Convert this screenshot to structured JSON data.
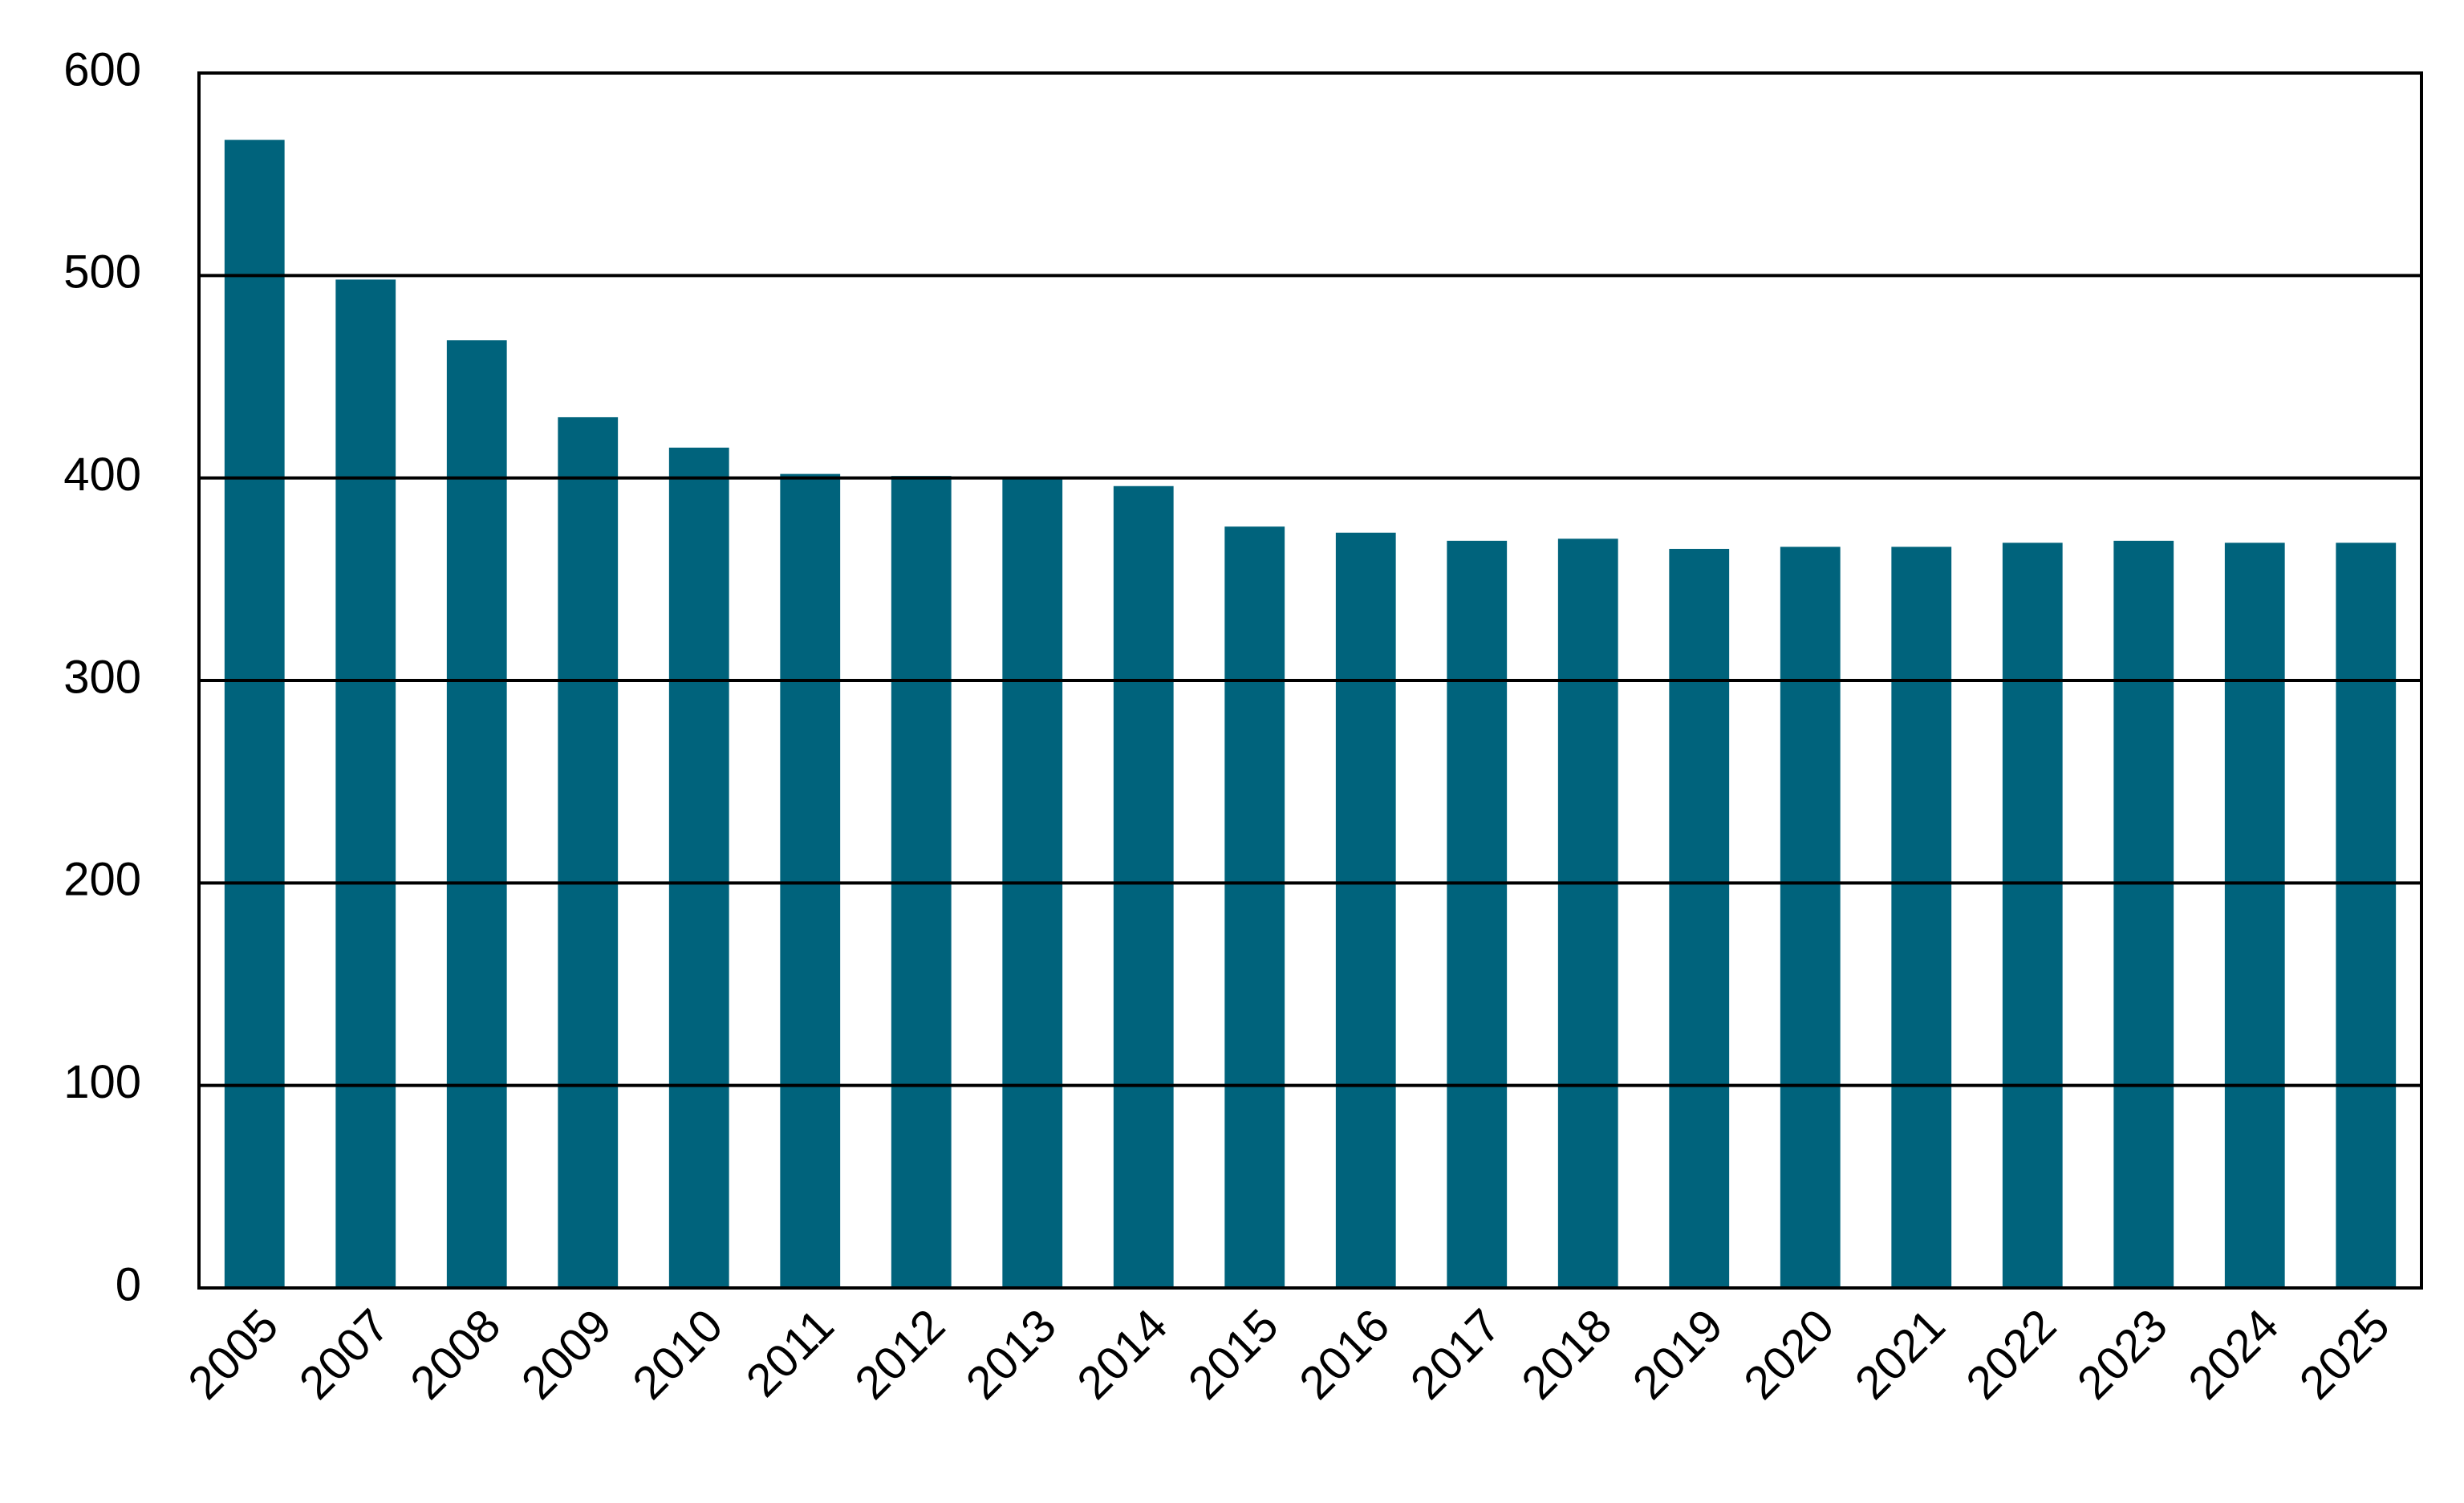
{
  "chart_data": {
    "type": "bar",
    "categories": [
      "2005",
      "2007",
      "2008",
      "2009",
      "2010",
      "2011",
      "2012",
      "2013",
      "2014",
      "2015",
      "2016",
      "2017",
      "2018",
      "2019",
      "2020",
      "2021",
      "2022",
      "2023",
      "2024",
      "2025"
    ],
    "values": [
      567,
      498,
      468,
      430,
      415,
      402,
      401,
      400,
      396,
      376,
      373,
      369,
      370,
      365,
      366,
      366,
      368,
      369,
      368,
      368
    ],
    "color": "#00637c",
    "ylim": [
      0,
      600
    ],
    "yticks": [
      0,
      100,
      200,
      300,
      400,
      500,
      600
    ],
    "grid": true
  }
}
